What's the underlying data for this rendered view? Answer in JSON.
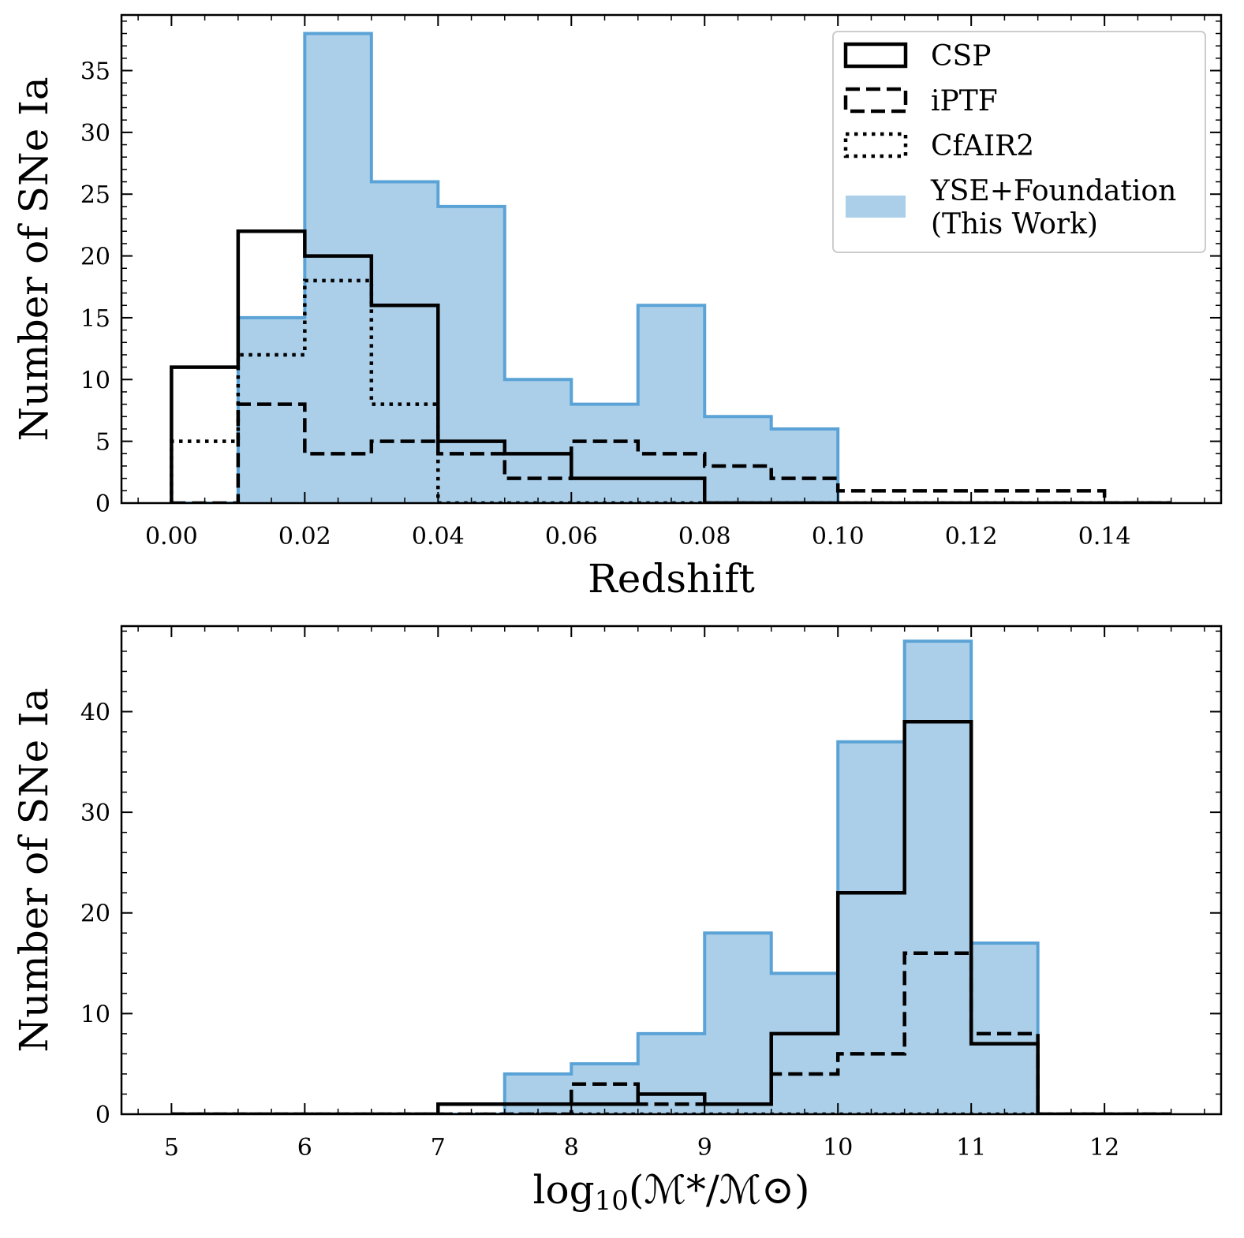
{
  "colors": {
    "fill": "#abcfe9",
    "fill_edge": "#5ba3d6",
    "line": "#000000"
  },
  "chart_data": [
    {
      "type": "histogram",
      "xlabel": "Redshift",
      "ylabel": "Number of SNe Ia",
      "xlim": [
        -0.0075,
        0.1575
      ],
      "ylim": [
        0,
        39.5
      ],
      "xticks": [
        0.0,
        0.02,
        0.04,
        0.06,
        0.08,
        0.1,
        0.12,
        0.14
      ],
      "xtick_labels": [
        "0.00",
        "0.02",
        "0.04",
        "0.06",
        "0.08",
        "0.10",
        "0.12",
        "0.14"
      ],
      "yticks": [
        0,
        5,
        10,
        15,
        20,
        25,
        30,
        35
      ],
      "ytick_labels": [
        "0",
        "5",
        "10",
        "15",
        "20",
        "25",
        "30",
        "35"
      ],
      "bin_edges": [
        0.0,
        0.01,
        0.02,
        0.03,
        0.04,
        0.05,
        0.06,
        0.07,
        0.08,
        0.09,
        0.1,
        0.11,
        0.12,
        0.13,
        0.14,
        0.15
      ],
      "legend": {
        "position": "top-right"
      },
      "series": [
        {
          "name": "YSE+Foundation (This Work)",
          "legend_lines": [
            "YSE+Foundation",
            "(This Work)"
          ],
          "style": "filled",
          "values": [
            0,
            15,
            38,
            26,
            24,
            10,
            8,
            16,
            7,
            6,
            0,
            0,
            0,
            0,
            0
          ]
        },
        {
          "name": "CSP",
          "style": "solid",
          "values": [
            11,
            22,
            20,
            16,
            5,
            4,
            2,
            2,
            0,
            0,
            0,
            0,
            0,
            0,
            0
          ]
        },
        {
          "name": "iPTF",
          "style": "dashed",
          "values": [
            0,
            8,
            4,
            5,
            4,
            2,
            5,
            4,
            3,
            2,
            1,
            1,
            1,
            1,
            0
          ]
        },
        {
          "name": "CfAIR2",
          "style": "dotted",
          "values": [
            5,
            12,
            18,
            8,
            0,
            0,
            0,
            0,
            0,
            0,
            0,
            0,
            0,
            0,
            0
          ]
        }
      ]
    },
    {
      "type": "histogram",
      "xlabel": "log10(M*/M⊙)",
      "xlabel_parts": {
        "main": "log",
        "sub": "10",
        "rest": "(ℳ*/ℳ⊙)"
      },
      "ylabel": "Number of SNe Ia",
      "xlim": [
        4.625,
        12.875
      ],
      "ylim": [
        0,
        48.5
      ],
      "xticks": [
        5,
        6,
        7,
        8,
        9,
        10,
        11,
        12
      ],
      "xtick_labels": [
        "5",
        "6",
        "7",
        "8",
        "9",
        "10",
        "11",
        "12"
      ],
      "yticks": [
        0,
        10,
        20,
        30,
        40
      ],
      "ytick_labels": [
        "0",
        "10",
        "20",
        "30",
        "40"
      ],
      "bin_edges": [
        5.0,
        5.5,
        6.0,
        6.5,
        7.0,
        7.5,
        8.0,
        8.5,
        9.0,
        9.5,
        10.0,
        10.5,
        11.0,
        11.5,
        12.0,
        12.5
      ],
      "series": [
        {
          "name": "YSE+Foundation (This Work)",
          "style": "filled",
          "values": [
            0,
            0,
            0,
            0,
            0,
            4,
            5,
            8,
            18,
            14,
            37,
            47,
            17,
            0,
            0
          ]
        },
        {
          "name": "CSP",
          "style": "solid",
          "values": [
            0,
            0,
            0,
            0,
            1,
            1,
            1,
            2,
            1,
            8,
            22,
            39,
            7,
            0,
            0
          ]
        },
        {
          "name": "iPTF",
          "style": "dashed",
          "values": [
            0,
            0,
            0,
            0,
            0,
            0,
            3,
            1,
            1,
            4,
            6,
            16,
            8,
            0,
            0
          ]
        },
        {
          "name": "CfAIR2",
          "style": "dotted",
          "values": [
            0,
            0,
            0,
            0,
            0,
            0,
            0,
            0,
            0,
            0,
            0,
            0,
            0,
            0,
            0
          ]
        }
      ]
    }
  ]
}
